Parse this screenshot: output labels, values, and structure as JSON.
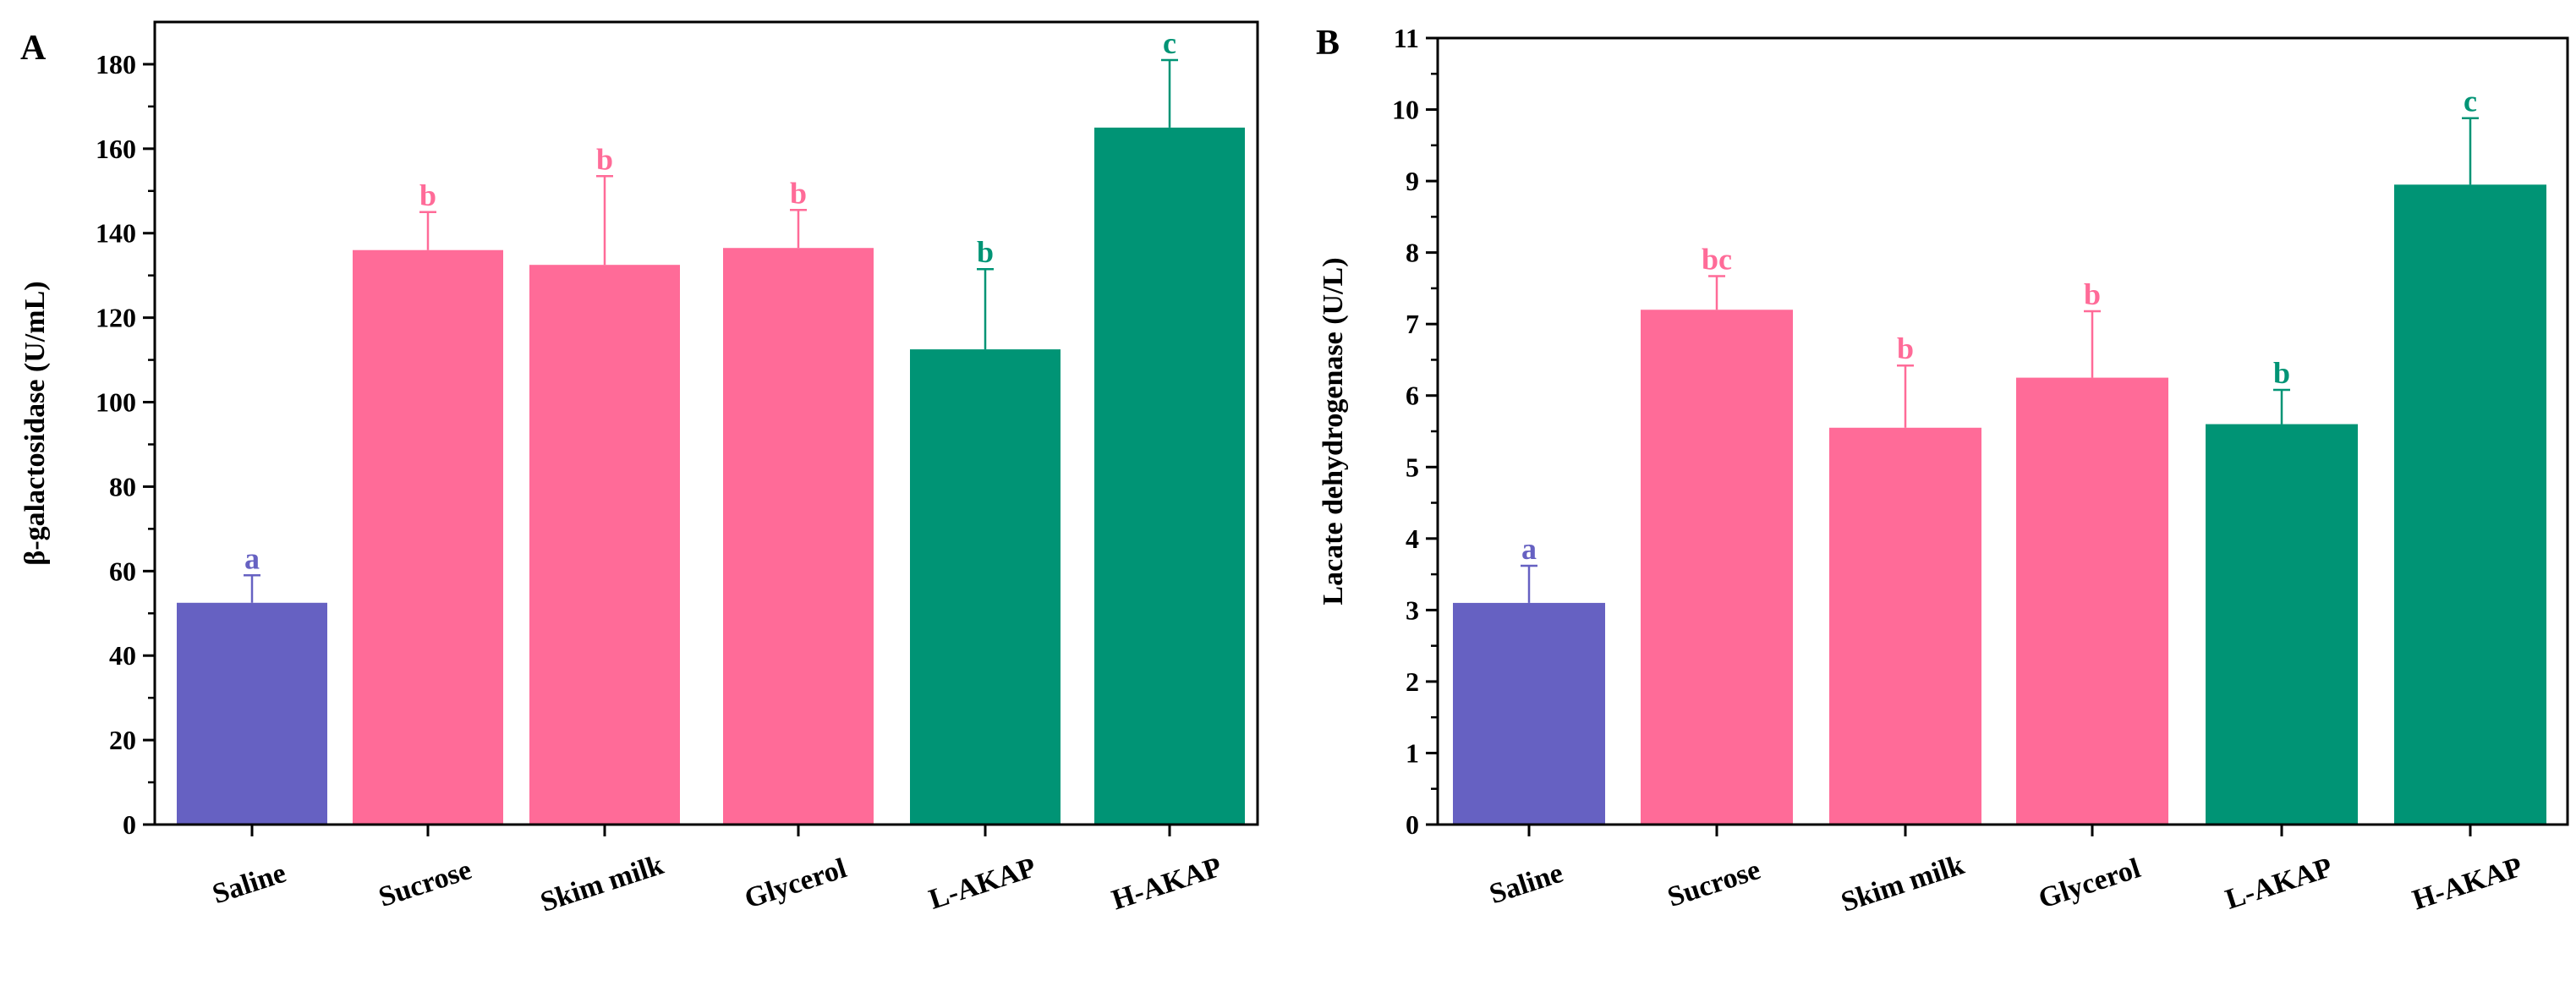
{
  "chart_data": [
    {
      "type": "bar",
      "panel": "A",
      "ylabel": "β-galactosidase (U/mL)",
      "xlabel": "",
      "ylim": [
        0,
        190
      ],
      "yticks": [
        0,
        20,
        40,
        60,
        80,
        100,
        120,
        140,
        160,
        180
      ],
      "categories": [
        "Saline",
        "Sucrose",
        "Skim milk",
        "Glycerol",
        "L-AKAP",
        "H-AKAP"
      ],
      "values": [
        52.5,
        136,
        132.5,
        136.5,
        112.5,
        165
      ],
      "errors": [
        6.5,
        9,
        21,
        9,
        19,
        16
      ],
      "significance": [
        "a",
        "b",
        "b",
        "b",
        "b",
        "c"
      ],
      "colors": [
        "#6661c2",
        "#ff6b98",
        "#ff6b98",
        "#ff6b98",
        "#009475",
        "#009475"
      ]
    },
    {
      "type": "bar",
      "panel": "B",
      "ylabel": "Lacate dehydrogenase (U/L)",
      "xlabel": "",
      "ylim": [
        0,
        11
      ],
      "yticks": [
        0,
        1,
        2,
        3,
        4,
        5,
        6,
        7,
        8,
        9,
        10,
        11
      ],
      "categories": [
        "Saline",
        "Sucrose",
        "Skim milk",
        "Glycerol",
        "L-AKAP",
        "H-AKAP"
      ],
      "values": [
        3.1,
        7.2,
        5.55,
        6.25,
        5.6,
        8.95
      ],
      "errors": [
        0.52,
        0.47,
        0.87,
        0.93,
        0.48,
        0.93
      ],
      "significance": [
        "a",
        "bc",
        "b",
        "b",
        "b",
        "c"
      ],
      "colors": [
        "#6661c2",
        "#ff6b98",
        "#ff6b98",
        "#ff6b98",
        "#009475",
        "#009475"
      ]
    }
  ]
}
